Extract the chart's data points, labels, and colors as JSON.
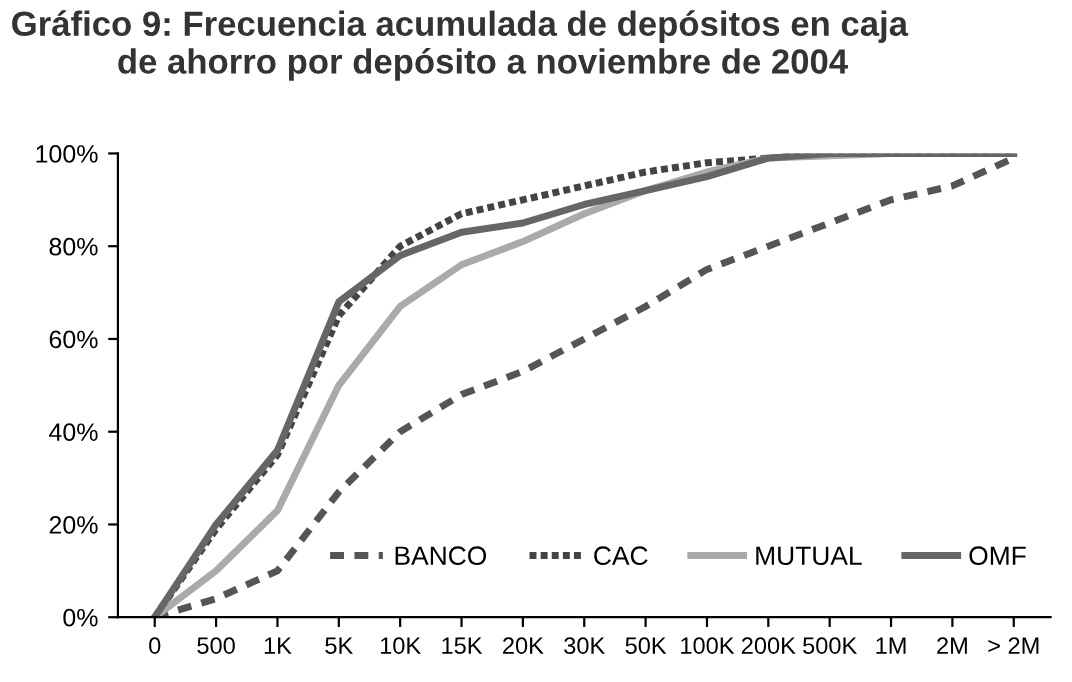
{
  "chart_data": {
    "type": "line",
    "title": "Gráfico 9: Frecuencia acumulada de depósitos en caja\n           de ahorro por depósito a noviembre de 2004",
    "categories": [
      "0",
      "500",
      "1K",
      "5K",
      "10K",
      "15K",
      "20K",
      "30K",
      "50K",
      "100K",
      "200K",
      "500K",
      "1M",
      "2M",
      "> 2M"
    ],
    "series": [
      {
        "name": "BANCO",
        "color": "#555555",
        "line_style": "dashed",
        "values": [
          0,
          4,
          10,
          27,
          40,
          48,
          53,
          60,
          67,
          75,
          80,
          85,
          90,
          93,
          99
        ]
      },
      {
        "name": "CAC",
        "color": "#444444",
        "line_style": "dotted",
        "values": [
          0,
          19,
          35,
          65,
          80,
          87,
          90,
          93,
          96,
          98,
          99,
          100,
          100,
          100,
          100
        ]
      },
      {
        "name": "MUTUAL",
        "color": "#aaaaaa",
        "line_style": "solid",
        "values": [
          0,
          10,
          23,
          50,
          67,
          76,
          81,
          87,
          92,
          96,
          99,
          99.5,
          100,
          100,
          100
        ]
      },
      {
        "name": "OMF",
        "color": "#666666",
        "line_style": "solid",
        "values": [
          0,
          20,
          36,
          68,
          78,
          83,
          85,
          89,
          92,
          95,
          99,
          100,
          100,
          100,
          100
        ]
      }
    ],
    "ylim": [
      0,
      100
    ],
    "yticks": [
      {
        "value": 0,
        "label": "0%"
      },
      {
        "value": 20,
        "label": "20%"
      },
      {
        "value": 40,
        "label": "40%"
      },
      {
        "value": 60,
        "label": "60%"
      },
      {
        "value": 80,
        "label": "80%"
      },
      {
        "value": 100,
        "label": "100%"
      }
    ],
    "grid": false,
    "legend": "bottom right",
    "marker": "none"
  }
}
